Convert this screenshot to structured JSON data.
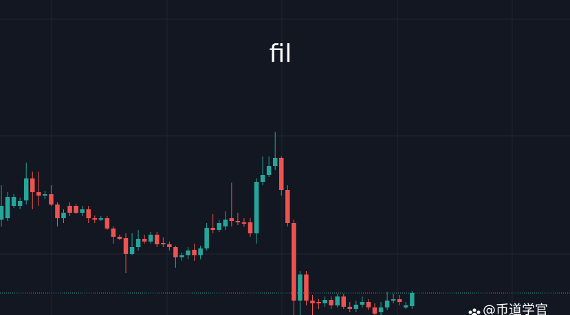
{
  "chart_data": {
    "type": "candlestick",
    "title": "fil",
    "watermark": "@币道学官",
    "up_color": "#26a69a",
    "down_color": "#ef5350",
    "last_price_line": true,
    "ylim": [
      0,
      459
    ],
    "open": [
      139,
      141,
      159,
      159,
      167,
      199,
      179,
      174,
      176,
      161,
      141,
      159,
      159,
      149,
      154,
      141,
      139,
      141,
      126,
      114,
      112,
      89,
      99,
      111,
      107,
      117,
      105,
      103,
      99,
      84,
      87,
      95,
      87,
      97,
      127,
      124,
      129,
      141,
      137,
      135,
      135,
      119,
      194,
      204,
      217,
      229,
      182,
      134,
      21,
      59,
      21,
      19,
      17,
      22,
      14,
      27,
      12,
      9,
      15,
      19,
      11,
      4,
      11,
      21,
      23,
      11,
      13
    ],
    "high": [
      189,
      179,
      176,
      171,
      222,
      209,
      209,
      181,
      189,
      164,
      154,
      164,
      162,
      159,
      159,
      145,
      144,
      144,
      129,
      117,
      119,
      119,
      124,
      117,
      121,
      121,
      113,
      107,
      101,
      91,
      99,
      104,
      101,
      134,
      147,
      139,
      151,
      193,
      149,
      141,
      141,
      199,
      231,
      231,
      267,
      231,
      189,
      139,
      64,
      64,
      29,
      23,
      27,
      27,
      31,
      31,
      19,
      21,
      27,
      23,
      17,
      19,
      34,
      31,
      29,
      19,
      35
    ],
    "low": [
      129,
      137,
      156,
      154,
      161,
      154,
      159,
      169,
      159,
      129,
      134,
      144,
      147,
      144,
      134,
      134,
      137,
      124,
      104,
      109,
      61,
      87,
      94,
      104,
      104,
      99,
      99,
      94,
      69,
      79,
      81,
      79,
      81,
      94,
      119,
      121,
      124,
      129,
      131,
      129,
      114,
      104,
      189,
      201,
      211,
      174,
      129,
      0,
      0,
      14,
      0,
      9,
      12,
      9,
      11,
      9,
      4,
      4,
      11,
      7,
      0,
      0,
      7,
      17,
      14,
      9,
      9
    ],
    "close": [
      159,
      172,
      172,
      166,
      199,
      179,
      174,
      176,
      161,
      141,
      149,
      149,
      149,
      154,
      141,
      139,
      141,
      126,
      114,
      111,
      89,
      99,
      111,
      107,
      117,
      103,
      103,
      99,
      84,
      87,
      94,
      87,
      97,
      127,
      124,
      134,
      139,
      137,
      135,
      133,
      119,
      194,
      204,
      217,
      229,
      182,
      134,
      21,
      59,
      21,
      17,
      17,
      22,
      14,
      27,
      12,
      9,
      15,
      19,
      11,
      2,
      11,
      21,
      23,
      19,
      14,
      32
    ]
  }
}
